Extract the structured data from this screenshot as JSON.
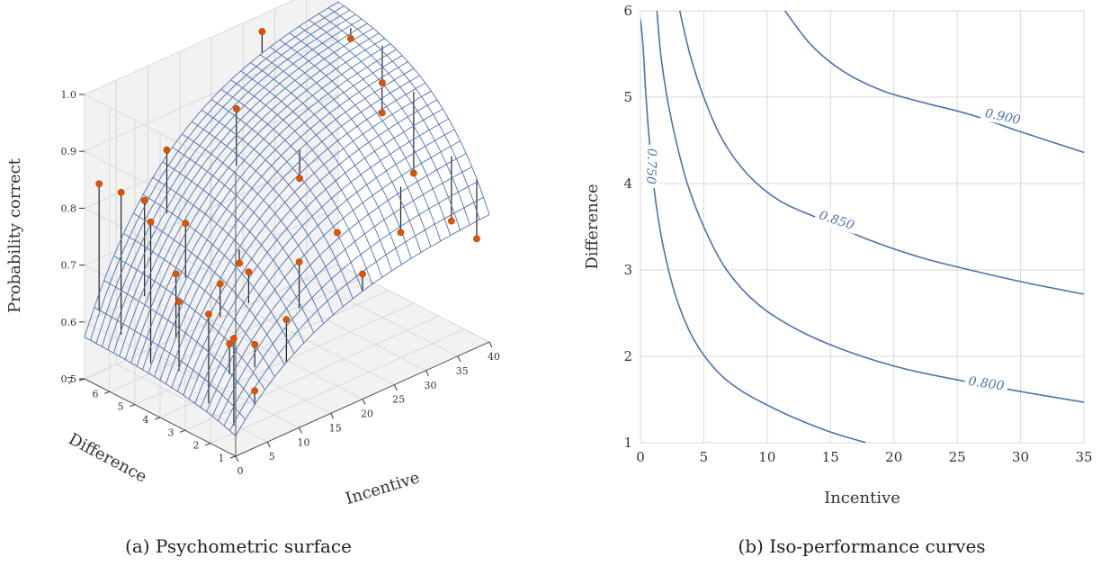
{
  "captions": {
    "left": "(a) Psychometric surface",
    "right": "(b) Iso-performance curves"
  },
  "colors": {
    "surface": "#4c72b0",
    "points": "#dd5500",
    "grid": "#d9d9d9",
    "pane": "#f2f2f2",
    "stem": "#222222",
    "contour": "#4c72b0"
  },
  "chart_data": [
    {
      "type": "surface3d",
      "xlabel": "Incentive",
      "ylabel": "Difference",
      "zlabel": "Probability correct",
      "xlim": [
        0,
        40
      ],
      "ylim": [
        1,
        7
      ],
      "zlim": [
        0.5,
        1.0
      ],
      "xticks": [
        "0",
        "5",
        "10",
        "15",
        "20",
        "25",
        "30",
        "35",
        "40"
      ],
      "yticks": [
        "1",
        "2",
        "3",
        "4",
        "5",
        "6",
        "7"
      ],
      "zticks": [
        "0.5",
        "0.6",
        "0.7",
        "0.8",
        "0.9",
        "1.0"
      ],
      "model": {
        "form": "p = 0.5 + a*(1-exp(-k*x))*(1-exp(-m*y))",
        "a": 0.5,
        "k": 0.075,
        "m": 0.45
      },
      "grid_resolution": [
        26,
        26
      ],
      "points": [
        {
          "x": 0.5,
          "y": 1.2,
          "z": 0.7
        },
        {
          "x": 0.5,
          "y": 2.2,
          "z": 0.72
        },
        {
          "x": 1.0,
          "y": 3.5,
          "z": 0.71
        },
        {
          "x": 0.5,
          "y": 4.5,
          "z": 0.83
        },
        {
          "x": 1.0,
          "y": 5.8,
          "z": 0.85
        },
        {
          "x": 1.5,
          "y": 6.8,
          "z": 0.84
        },
        {
          "x": 3.0,
          "y": 1.0,
          "z": 0.6
        },
        {
          "x": 3.0,
          "y": 2.0,
          "z": 0.66
        },
        {
          "x": 2.5,
          "y": 4.0,
          "z": 0.74
        },
        {
          "x": 3.5,
          "y": 5.5,
          "z": 0.83
        },
        {
          "x": 5.0,
          "y": 1.5,
          "z": 0.66
        },
        {
          "x": 5.5,
          "y": 3.0,
          "z": 0.73
        },
        {
          "x": 6.0,
          "y": 4.5,
          "z": 0.8
        },
        {
          "x": 8.0,
          "y": 1.0,
          "z": 0.7
        },
        {
          "x": 8.0,
          "y": 2.5,
          "z": 0.75
        },
        {
          "x": 9.0,
          "y": 6.0,
          "z": 0.88
        },
        {
          "x": 10.5,
          "y": 3.5,
          "z": 0.73
        },
        {
          "x": 12.0,
          "y": 1.5,
          "z": 0.77
        },
        {
          "x": 16.0,
          "y": 5.0,
          "z": 0.94
        },
        {
          "x": 20.0,
          "y": 1.0,
          "z": 0.72
        },
        {
          "x": 20.0,
          "y": 2.0,
          "z": 0.77
        },
        {
          "x": 22.0,
          "y": 4.0,
          "z": 0.81
        },
        {
          "x": 28.0,
          "y": 7.0,
          "z": 0.97
        },
        {
          "x": 30.0,
          "y": 2.0,
          "z": 0.72
        },
        {
          "x": 35.0,
          "y": 4.0,
          "z": 0.86
        },
        {
          "x": 38.0,
          "y": 2.0,
          "z": 0.7
        },
        {
          "x": 38.0,
          "y": 3.5,
          "z": 0.75
        },
        {
          "x": 38.0,
          "y": 6.0,
          "z": 0.93
        },
        {
          "x": 40.0,
          "y": 1.5,
          "z": 0.67
        },
        {
          "x": 39.0,
          "y": 5.0,
          "z": 0.87
        }
      ]
    },
    {
      "type": "contour",
      "xlabel": "Incentive",
      "ylabel": "Difference",
      "xlim": [
        0,
        35
      ],
      "ylim": [
        1,
        6
      ],
      "xticks": [
        "0",
        "5",
        "10",
        "15",
        "20",
        "25",
        "30",
        "35"
      ],
      "yticks": [
        "1",
        "2",
        "3",
        "4",
        "5",
        "6"
      ],
      "grid": true,
      "levels": [
        {
          "label": "0.750",
          "label_at": {
            "x": 0.9,
            "y": 4.2
          },
          "label_rotation": 92,
          "points": [
            [
              0.0,
              5.9
            ],
            [
              0.2,
              5.6
            ],
            [
              0.4,
              5.1
            ],
            [
              0.7,
              4.5
            ],
            [
              1.2,
              3.8
            ],
            [
              1.9,
              3.2
            ],
            [
              3.0,
              2.6
            ],
            [
              4.6,
              2.1
            ],
            [
              7.0,
              1.7
            ],
            [
              10.5,
              1.4
            ],
            [
              14.5,
              1.15
            ],
            [
              17.8,
              1.0
            ]
          ]
        },
        {
          "label": "0.800",
          "label_at": {
            "x": 27.3,
            "y": 1.69
          },
          "label_rotation": 8,
          "points": [
            [
              1.3,
              6.0
            ],
            [
              1.6,
              5.5
            ],
            [
              2.1,
              5.0
            ],
            [
              2.8,
              4.5
            ],
            [
              3.7,
              4.0
            ],
            [
              5.0,
              3.5
            ],
            [
              6.8,
              3.0
            ],
            [
              9.3,
              2.6
            ],
            [
              12.5,
              2.3
            ],
            [
              16.5,
              2.05
            ],
            [
              21.0,
              1.85
            ],
            [
              26.0,
              1.7
            ],
            [
              30.5,
              1.58
            ],
            [
              35.0,
              1.47
            ]
          ]
        },
        {
          "label": "0.850",
          "label_at": {
            "x": 15.5,
            "y": 3.58
          },
          "label_rotation": 18,
          "points": [
            [
              3.1,
              6.0
            ],
            [
              3.9,
              5.5
            ],
            [
              5.0,
              5.0
            ],
            [
              6.5,
              4.5
            ],
            [
              8.5,
              4.1
            ],
            [
              11.0,
              3.8
            ],
            [
              14.0,
              3.6
            ],
            [
              18.0,
              3.35
            ],
            [
              22.0,
              3.15
            ],
            [
              26.0,
              3.0
            ],
            [
              30.5,
              2.85
            ],
            [
              35.0,
              2.72
            ]
          ]
        },
        {
          "label": "0.900",
          "label_at": {
            "x": 28.6,
            "y": 4.78
          },
          "label_rotation": 12,
          "points": [
            [
              11.4,
              6.0
            ],
            [
              13.5,
              5.6
            ],
            [
              16.0,
              5.3
            ],
            [
              19.0,
              5.08
            ],
            [
              22.0,
              4.95
            ],
            [
              26.0,
              4.8
            ],
            [
              30.0,
              4.6
            ],
            [
              35.0,
              4.36
            ]
          ]
        }
      ]
    }
  ]
}
